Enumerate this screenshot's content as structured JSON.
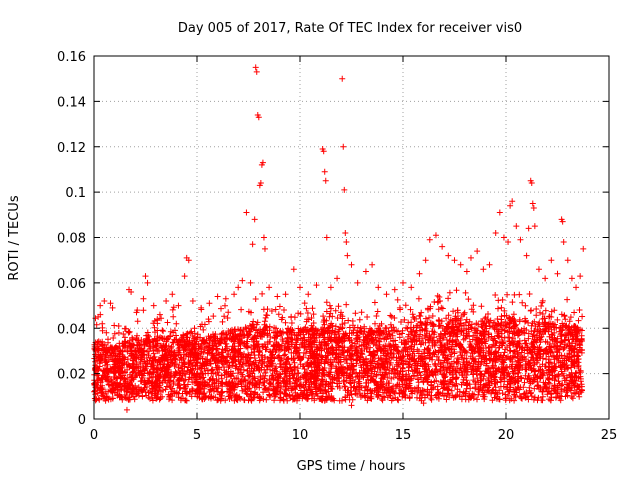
{
  "chart_data": {
    "type": "scatter",
    "title": "Day 005 of 2017, Rate Of TEC Index for receiver vis0",
    "xlabel": "GPS time / hours",
    "ylabel": "ROTI / TECUs",
    "xlim": [
      0,
      25
    ],
    "ylim": [
      0,
      0.16
    ],
    "x_ticks": [
      0,
      5,
      10,
      15,
      20,
      25
    ],
    "x_tick_labels": [
      "0",
      "5",
      "10",
      "15",
      "20",
      "25"
    ],
    "y_ticks": [
      0,
      0.02,
      0.04,
      0.06,
      0.08,
      0.1,
      0.12,
      0.14,
      0.16
    ],
    "y_tick_labels": [
      "0",
      "0.02",
      "0.04",
      "0.06",
      "0.08",
      "0.1",
      "0.12",
      "0.14",
      "0.16"
    ],
    "grid": true,
    "marker": "+",
    "color": "#ff0000",
    "series": [
      {
        "name": "ROTI",
        "points": [
          [
            0.1,
            0.03
          ],
          [
            0.2,
            0.045
          ],
          [
            0.3,
            0.05
          ],
          [
            0.4,
            0.042
          ],
          [
            0.5,
            0.052
          ],
          [
            0.6,
            0.038
          ],
          [
            0.8,
            0.051
          ],
          [
            0.9,
            0.049
          ],
          [
            1.2,
            0.041
          ],
          [
            1.5,
            0.036
          ],
          [
            1.6,
            0.004
          ],
          [
            1.7,
            0.057
          ],
          [
            1.8,
            0.056
          ],
          [
            2.1,
            0.048
          ],
          [
            2.4,
            0.053
          ],
          [
            2.5,
            0.063
          ],
          [
            2.6,
            0.06
          ],
          [
            2.9,
            0.05
          ],
          [
            3.2,
            0.046
          ],
          [
            3.5,
            0.052
          ],
          [
            3.8,
            0.055
          ],
          [
            4.1,
            0.05
          ],
          [
            4.4,
            0.063
          ],
          [
            4.5,
            0.071
          ],
          [
            4.6,
            0.07
          ],
          [
            4.8,
            0.052
          ],
          [
            5.2,
            0.049
          ],
          [
            5.6,
            0.051
          ],
          [
            6.0,
            0.054
          ],
          [
            6.4,
            0.053
          ],
          [
            6.8,
            0.055
          ],
          [
            7.0,
            0.058
          ],
          [
            7.2,
            0.061
          ],
          [
            7.4,
            0.091
          ],
          [
            7.6,
            0.06
          ],
          [
            7.7,
            0.077
          ],
          [
            7.8,
            0.088
          ],
          [
            7.85,
            0.155
          ],
          [
            7.9,
            0.153
          ],
          [
            7.95,
            0.134
          ],
          [
            8.0,
            0.133
          ],
          [
            8.05,
            0.103
          ],
          [
            8.1,
            0.104
          ],
          [
            8.15,
            0.112
          ],
          [
            8.2,
            0.113
          ],
          [
            8.25,
            0.08
          ],
          [
            8.3,
            0.075
          ],
          [
            8.5,
            0.058
          ],
          [
            8.9,
            0.054
          ],
          [
            9.3,
            0.055
          ],
          [
            9.7,
            0.066
          ],
          [
            10.0,
            0.058
          ],
          [
            10.4,
            0.055
          ],
          [
            10.8,
            0.059
          ],
          [
            11.1,
            0.119
          ],
          [
            11.15,
            0.118
          ],
          [
            11.2,
            0.109
          ],
          [
            11.25,
            0.105
          ],
          [
            11.3,
            0.08
          ],
          [
            11.5,
            0.058
          ],
          [
            11.8,
            0.062
          ],
          [
            12.05,
            0.15
          ],
          [
            12.1,
            0.12
          ],
          [
            12.15,
            0.101
          ],
          [
            12.2,
            0.082
          ],
          [
            12.25,
            0.078
          ],
          [
            12.3,
            0.072
          ],
          [
            12.5,
            0.068
          ],
          [
            12.8,
            0.06
          ],
          [
            13.2,
            0.065
          ],
          [
            13.5,
            0.068
          ],
          [
            13.8,
            0.058
          ],
          [
            14.2,
            0.055
          ],
          [
            14.6,
            0.057
          ],
          [
            15.0,
            0.06
          ],
          [
            15.4,
            0.058
          ],
          [
            15.8,
            0.064
          ],
          [
            16.1,
            0.07
          ],
          [
            16.3,
            0.079
          ],
          [
            16.6,
            0.081
          ],
          [
            16.9,
            0.076
          ],
          [
            17.2,
            0.072
          ],
          [
            17.5,
            0.07
          ],
          [
            17.8,
            0.068
          ],
          [
            18.1,
            0.065
          ],
          [
            18.3,
            0.071
          ],
          [
            18.6,
            0.074
          ],
          [
            18.9,
            0.066
          ],
          [
            19.2,
            0.068
          ],
          [
            19.5,
            0.082
          ],
          [
            19.7,
            0.091
          ],
          [
            19.9,
            0.08
          ],
          [
            20.1,
            0.078
          ],
          [
            20.2,
            0.094
          ],
          [
            20.3,
            0.096
          ],
          [
            20.5,
            0.085
          ],
          [
            20.7,
            0.079
          ],
          [
            21.0,
            0.072
          ],
          [
            21.1,
            0.084
          ],
          [
            21.2,
            0.105
          ],
          [
            21.25,
            0.104
          ],
          [
            21.3,
            0.095
          ],
          [
            21.35,
            0.093
          ],
          [
            21.4,
            0.085
          ],
          [
            21.6,
            0.066
          ],
          [
            21.9,
            0.062
          ],
          [
            22.2,
            0.07
          ],
          [
            22.5,
            0.064
          ],
          [
            22.7,
            0.088
          ],
          [
            22.75,
            0.087
          ],
          [
            22.8,
            0.078
          ],
          [
            23.0,
            0.07
          ],
          [
            23.2,
            0.062
          ],
          [
            23.4,
            0.058
          ],
          [
            23.6,
            0.063
          ],
          [
            23.75,
            0.075
          ],
          [
            23.6,
            0.012
          ],
          [
            12.5,
            0.006
          ],
          [
            16.0,
            0.007
          ]
        ]
      }
    ],
    "noise_band": {
      "x_range": [
        0,
        23.7
      ],
      "y_floor": 0.008,
      "segments": [
        [
          0,
          0.0,
          0.035
        ],
        [
          1,
          0.0,
          0.032
        ],
        [
          2,
          0.0,
          0.036
        ],
        [
          3,
          0.0,
          0.036
        ],
        [
          4,
          0.0,
          0.037
        ],
        [
          5,
          0.0,
          0.036
        ],
        [
          6,
          0.0,
          0.038
        ],
        [
          7,
          0.0,
          0.04
        ],
        [
          8,
          0.0,
          0.043
        ],
        [
          9,
          0.0,
          0.04
        ],
        [
          10,
          0.0,
          0.04
        ],
        [
          11,
          0.0,
          0.041
        ],
        [
          12,
          0.0,
          0.042
        ],
        [
          13,
          0.0,
          0.041
        ],
        [
          14,
          0.0,
          0.04
        ],
        [
          15,
          0.0,
          0.04
        ],
        [
          16,
          0.0,
          0.044
        ],
        [
          17,
          0.0,
          0.045
        ],
        [
          18,
          0.0,
          0.044
        ],
        [
          19,
          0.0,
          0.043
        ],
        [
          20,
          0.0,
          0.045
        ],
        [
          21,
          0.0,
          0.044
        ],
        [
          22,
          0.0,
          0.043
        ],
        [
          23,
          0.0,
          0.042
        ],
        [
          23.7,
          0.0,
          0.04
        ]
      ]
    }
  }
}
